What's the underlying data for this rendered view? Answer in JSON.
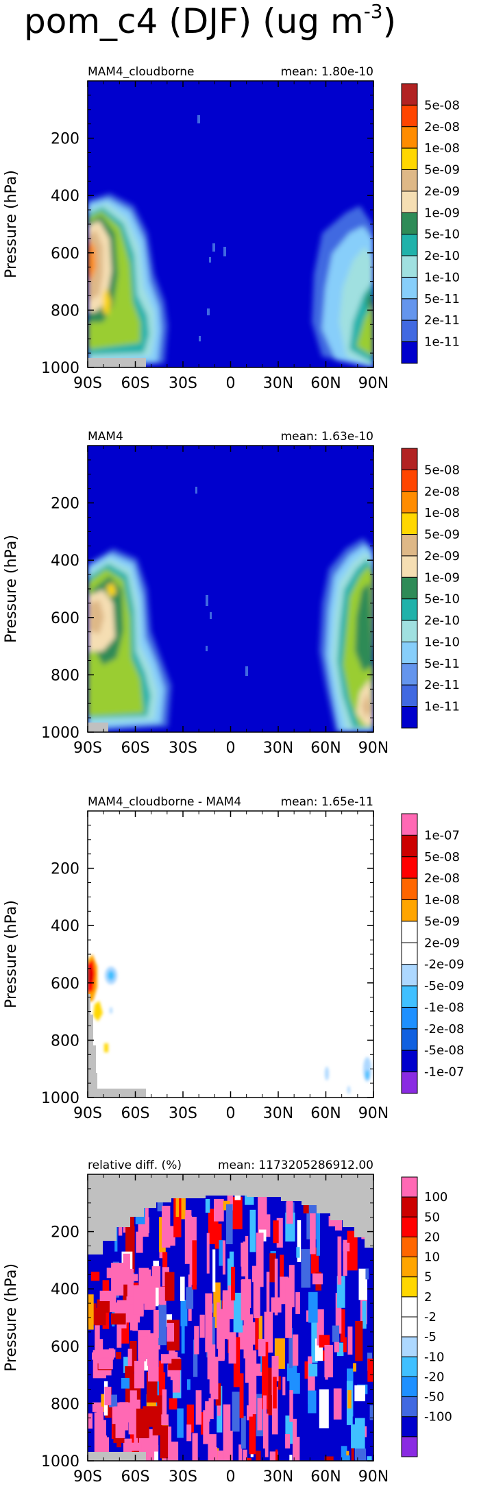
{
  "title": "pom_c4 (DJF) (ug m",
  "title_sup": "-3",
  "title_close": ")",
  "chart_data": [
    {
      "type": "heatmap",
      "panel_title": "MAM4_cloudborne",
      "mean_label": "mean: 1.80e-10",
      "ylabel": "Pressure (hPa)",
      "y_ticks": [
        "200",
        "400",
        "600",
        "800",
        "1000"
      ],
      "x_ticks": [
        "90S",
        "60S",
        "30S",
        "0",
        "30N",
        "60N",
        "90N"
      ],
      "ylim": [
        1000,
        0
      ],
      "xlim": [
        -90,
        90
      ],
      "colorbar": [
        "5e-08",
        "2e-08",
        "1e-08",
        "5e-09",
        "2e-09",
        "1e-09",
        "5e-10",
        "2e-10",
        "1e-10",
        "5e-11",
        "2e-11",
        "1e-11"
      ],
      "colors": [
        "#b22222",
        "#ff4500",
        "#ff8c00",
        "#ffd700",
        "#deb887",
        "#f5deb3",
        "#2e8b57",
        "#20b2aa",
        "#a0e0e0",
        "#87cefa",
        "#6495ed",
        "#4169e1",
        "#0000cd"
      ]
    },
    {
      "type": "heatmap",
      "panel_title": "MAM4",
      "mean_label": "mean: 1.63e-10",
      "ylabel": "Pressure (hPa)",
      "y_ticks": [
        "200",
        "400",
        "600",
        "800",
        "1000"
      ],
      "x_ticks": [
        "90S",
        "60S",
        "30S",
        "0",
        "30N",
        "60N",
        "90N"
      ],
      "ylim": [
        1000,
        0
      ],
      "xlim": [
        -90,
        90
      ],
      "colorbar": [
        "5e-08",
        "2e-08",
        "1e-08",
        "5e-09",
        "2e-09",
        "1e-09",
        "5e-10",
        "2e-10",
        "1e-10",
        "5e-11",
        "2e-11",
        "1e-11"
      ],
      "colors": [
        "#b22222",
        "#ff4500",
        "#ff8c00",
        "#ffd700",
        "#deb887",
        "#f5deb3",
        "#2e8b57",
        "#20b2aa",
        "#a0e0e0",
        "#87cefa",
        "#6495ed",
        "#4169e1",
        "#0000cd"
      ]
    },
    {
      "type": "heatmap",
      "panel_title": "MAM4_cloudborne - MAM4",
      "mean_label": "mean: 1.65e-11",
      "ylabel": "Pressure (hPa)",
      "y_ticks": [
        "200",
        "400",
        "600",
        "800",
        "1000"
      ],
      "x_ticks": [
        "90S",
        "60S",
        "30S",
        "0",
        "30N",
        "60N",
        "90N"
      ],
      "ylim": [
        1000,
        0
      ],
      "xlim": [
        -90,
        90
      ],
      "colorbar": [
        "1e-07",
        "5e-08",
        "2e-08",
        "1e-08",
        "5e-09",
        "2e-09",
        "-2e-09",
        "-5e-09",
        "-1e-08",
        "-2e-08",
        "-5e-08",
        "-1e-07"
      ],
      "colors": [
        "#ff69b4",
        "#cc0000",
        "#ff0000",
        "#ff6600",
        "#ffa500",
        "#ffffff",
        "#ffffff",
        "#add8ff",
        "#40c0ff",
        "#1e90ff",
        "#1060e0",
        "#0000cd",
        "#8a2be2"
      ]
    },
    {
      "type": "heatmap",
      "panel_title": "relative diff. (%)",
      "mean_label": "mean: 1173205286912.00",
      "ylabel": "Pressure (hPa)",
      "y_ticks": [
        "200",
        "400",
        "600",
        "800",
        "1000"
      ],
      "x_ticks": [
        "90S",
        "60S",
        "30S",
        "0",
        "30N",
        "60N",
        "90N"
      ],
      "ylim": [
        1000,
        0
      ],
      "xlim": [
        -90,
        90
      ],
      "colorbar": [
        "100",
        "50",
        "20",
        "10",
        "5",
        "2",
        "-2",
        "-5",
        "-10",
        "-20",
        "-50",
        "-100"
      ],
      "colors": [
        "#ff69b4",
        "#cc0000",
        "#ff0000",
        "#ff6600",
        "#ffa500",
        "#ffd700",
        "#ffffff",
        "#ffffff",
        "#add8ff",
        "#40c0ff",
        "#1e90ff",
        "#4169e1",
        "#0000cd",
        "#8a2be2"
      ]
    }
  ]
}
